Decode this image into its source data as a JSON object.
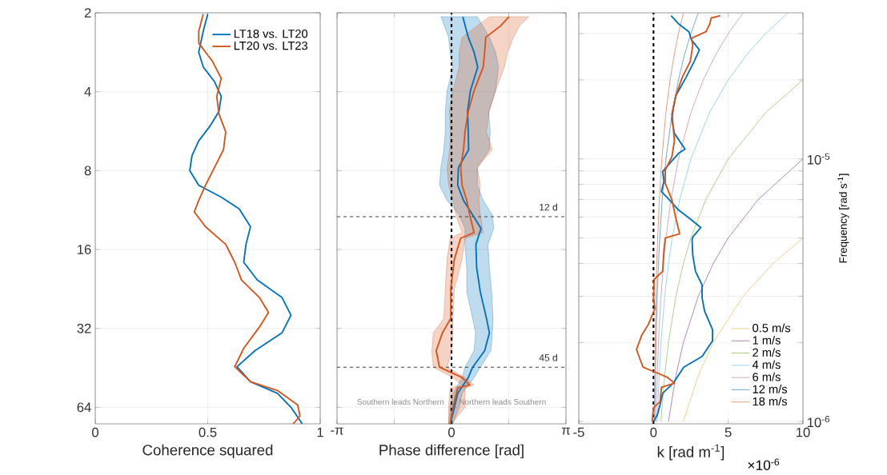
{
  "chart_data": [
    {
      "type": "line",
      "orientation": "horizontal",
      "xlabel": "Coherence squared",
      "log": "y",
      "grid": true,
      "legend": "top right",
      "xlim": [
        0,
        1
      ],
      "xticks": [
        0,
        0.5,
        1
      ],
      "ylim": [
        74,
        2
      ],
      "yticks": [
        2,
        4,
        8,
        16,
        32,
        64
      ],
      "series": [
        {
          "name": "LT18 vs. LT20",
          "color": "#0072bd",
          "x": [
            2.02,
            2.35,
            2.83,
            3.22,
            3.66,
            4.17,
            4.75,
            5.41,
            6.16,
            7.01,
            8.0,
            9.1,
            10.1,
            11.2,
            13.1,
            15.3,
            17.9,
            20.9,
            24.4,
            28.5,
            33.3,
            38.9,
            44.8,
            51.1,
            56.6,
            64,
            74
          ],
          "values": [
            0.5,
            0.48,
            0.46,
            0.48,
            0.53,
            0.56,
            0.55,
            0.51,
            0.46,
            0.43,
            0.42,
            0.46,
            0.56,
            0.64,
            0.69,
            0.67,
            0.66,
            0.72,
            0.83,
            0.87,
            0.83,
            0.71,
            0.63,
            0.69,
            0.81,
            0.87,
            0.92
          ]
        },
        {
          "name": "LT20 vs. LT23",
          "color": "#d95319",
          "x": [
            2.02,
            2.35,
            2.61,
            3.05,
            3.56,
            4.17,
            4.87,
            5.69,
            6.66,
            7.78,
            9.1,
            10.4,
            11.5,
            13.1,
            15.3,
            17.9,
            20.9,
            24.4,
            27.8,
            31.6,
            38.1,
            44.8,
            51.1,
            55.2,
            62.7,
            69.1,
            74
          ],
          "values": [
            0.48,
            0.46,
            0.46,
            0.52,
            0.56,
            0.54,
            0.55,
            0.58,
            0.57,
            0.53,
            0.49,
            0.46,
            0.44,
            0.49,
            0.58,
            0.62,
            0.65,
            0.73,
            0.77,
            0.73,
            0.66,
            0.62,
            0.69,
            0.81,
            0.9,
            0.91,
            0.88
          ]
        }
      ]
    },
    {
      "type": "line",
      "orientation": "horizontal",
      "xlabel": "Phase difference [rad]",
      "log": "y",
      "grid": true,
      "tick_labels": "x",
      "xlim": [
        -3.1416,
        3.1416
      ],
      "xticks": [
        {
          "value": -3.1416,
          "label": "-π"
        },
        {
          "value": -1.5708,
          "label": null
        },
        0,
        {
          "value": 1.5708,
          "label": null
        },
        {
          "value": 3.1416,
          "label": "π"
        }
      ],
      "ylim": [
        74,
        2
      ],
      "yticks": [
        2,
        4,
        8,
        16,
        32,
        64
      ],
      "ref_lines": [
        {
          "axis": "x",
          "value": 0,
          "color": "#000000",
          "line_style": "dashed"
        },
        {
          "axis": "y",
          "value": 12,
          "label": "12 d",
          "color": "#404040",
          "line_style": "dashed"
        },
        {
          "axis": "y",
          "value": 45,
          "label": "45 d",
          "color": "#404040",
          "line_style": "dashed"
        }
      ],
      "annotations": [
        "Southern leads Northern",
        "Northern leads Southern"
      ],
      "series": [
        {
          "color": "#0072bd",
          "x": [
            2.07,
            2.48,
            2.83,
            3.22,
            3.96,
            4.75,
            5.69,
            6.66,
            7.78,
            9.1,
            10.4,
            11.8,
            13.3,
            15.3,
            18.8,
            23.2,
            29.3,
            33.3,
            38.9,
            45.0,
            49.3,
            56.6,
            64,
            74
          ],
          "values": [
            0.31,
            0.46,
            0.62,
            0.72,
            0.52,
            0.44,
            0.46,
            0.47,
            0.19,
            0.17,
            0.33,
            0.58,
            0.81,
            0.67,
            0.69,
            0.79,
            0.96,
            1.04,
            0.91,
            0.58,
            0.46,
            0.17,
            0.08,
            -0.03
          ],
          "lower": [
            -0.29,
            -0.08,
            -0.04,
            0.04,
            -0.12,
            -0.17,
            -0.17,
            -0.21,
            -0.29,
            -0.33,
            -0.12,
            0.21,
            0.37,
            0.37,
            0.42,
            0.42,
            0.58,
            0.66,
            0.62,
            0.37,
            0.29,
            0.04,
            -0.04,
            -0.08
          ],
          "upper": [
            0.71,
            1.04,
            1.21,
            1.29,
            1.21,
            1.02,
            1.06,
            1.04,
            0.71,
            0.71,
            0.87,
            1.12,
            1.16,
            1.0,
            1.04,
            1.1,
            1.14,
            1.12,
            1.08,
            0.79,
            0.62,
            0.29,
            0.21,
            0.04
          ]
        },
        {
          "color": "#d95319",
          "x": [
            2.07,
            2.24,
            2.48,
            2.83,
            3.22,
            3.96,
            4.75,
            5.69,
            6.66,
            7.78,
            9.1,
            10.4,
            11.8,
            13.8,
            14.5,
            17.4,
            22.6,
            29.3,
            33.3,
            38.9,
            45.0,
            49.3,
            52.6,
            54.0,
            64,
            74
          ],
          "values": [
            1.58,
            1.35,
            0.94,
            0.91,
            0.87,
            0.62,
            0.46,
            0.37,
            0.33,
            0.25,
            0.29,
            0.42,
            0.5,
            0.62,
            0.25,
            0.08,
            -0.02,
            -0.02,
            -0.25,
            -0.42,
            -0.33,
            0.29,
            0.5,
            0.17,
            0.04,
            -0.04
          ],
          "lower": [
            1.04,
            0.71,
            0.29,
            0.21,
            0.21,
            0.04,
            -0.06,
            -0.03,
            -0.05,
            -0.12,
            -0.08,
            0.04,
            0.12,
            0.29,
            -0.04,
            -0.12,
            -0.17,
            -0.21,
            -0.5,
            -0.54,
            -0.5,
            0.04,
            0.29,
            -0.04,
            -0.08,
            -0.08
          ],
          "upper": [
            2.12,
            1.87,
            1.7,
            1.54,
            1.45,
            1.21,
            1.04,
            0.96,
            1.12,
            0.71,
            0.79,
            0.75,
            0.79,
            0.87,
            0.37,
            0.29,
            0.08,
            0.04,
            0.04,
            0.0,
            -0.12,
            0.37,
            0.62,
            0.37,
            0.37,
            0.0
          ]
        }
      ]
    },
    {
      "type": "line",
      "orientation": "horizontal",
      "xlabel": "k [rad m$^{-1}$]",
      "ylabel": "Frequency [rad s$^{-1}$]",
      "log": "y",
      "grid": true,
      "legend": "bottom right",
      "xlim": [
        -5,
        10
      ],
      "xticks": [
        -5,
        0,
        5,
        10
      ],
      "ylim": [
        9.8e-07,
        3.6e-05
      ],
      "yticks": [
        {
          "value": 1e-06,
          "label": "10$^{-6}$"
        },
        {
          "value": 2e-06,
          "label": null
        },
        {
          "value": 3e-06,
          "label": null
        },
        {
          "value": 4e-06,
          "label": null
        },
        {
          "value": 5e-06,
          "label": null
        },
        {
          "value": 6e-06,
          "label": null
        },
        {
          "value": 7e-06,
          "label": null
        },
        {
          "value": 8e-06,
          "label": null
        },
        {
          "value": 9e-06,
          "label": null
        },
        {
          "value": 1e-05,
          "label": "10$^{-5}$"
        },
        {
          "value": 2e-05,
          "label": null
        },
        {
          "value": 3e-05,
          "label": null
        }
      ],
      "ref_lines": [
        {
          "axis": "x",
          "value": 0,
          "color": "#000000",
          "line_style": "dashed"
        }
      ],
      "annotations": [
        "×10$^{-6}$"
      ],
      "series": [
        {
          "name": "0.5 m/s",
          "color": "#edc46e",
          "x": [
            1e-06,
            1.5e-06,
            2e-06,
            3e-06,
            4e-06,
            5e-06
          ],
          "values": [
            2,
            3,
            4,
            6,
            8,
            10
          ]
        },
        {
          "name": "1 m/s",
          "color": "#9a6aa8",
          "x": [
            1e-06,
            1.5e-06,
            2e-06,
            3e-06,
            4e-06,
            5e-06,
            7e-06,
            1e-05
          ],
          "values": [
            1,
            1.5,
            2,
            3,
            4,
            5,
            7,
            10
          ]
        },
        {
          "name": "2 m/s",
          "color": "#9cc46c",
          "x": [
            1e-06,
            1.5e-06,
            2e-06,
            3e-06,
            4e-06,
            5e-06,
            7e-06,
            1e-05,
            1.5e-05,
            2e-05
          ],
          "values": [
            0.5,
            0.75,
            1,
            1.5,
            2,
            2.5,
            3.5,
            5,
            7.5,
            10
          ]
        },
        {
          "name": "4 m/s",
          "color": "#7fcdee",
          "x": [
            1e-06,
            1.5e-06,
            2e-06,
            3e-06,
            4e-06,
            5e-06,
            7e-06,
            1e-05,
            1.5e-05,
            2e-05,
            2.5e-05,
            3e-05,
            3.6e-05
          ],
          "values": [
            0.25,
            0.38,
            0.5,
            0.75,
            1,
            1.25,
            1.75,
            2.5,
            3.75,
            5,
            6.25,
            7.5,
            9
          ]
        },
        {
          "name": "6 m/s",
          "color": "#cf93b4",
          "x": [
            1e-06,
            1.5e-06,
            2e-06,
            3e-06,
            4e-06,
            5e-06,
            7e-06,
            1e-05,
            1.5e-05,
            2e-05,
            2.5e-05,
            3e-05,
            3.6e-05
          ],
          "values": [
            0.17,
            0.25,
            0.33,
            0.5,
            0.67,
            0.83,
            1.17,
            1.67,
            2.5,
            3.33,
            4.17,
            5,
            6
          ]
        },
        {
          "name": "12 m/s",
          "color": "#4a94d0",
          "x": [
            1e-06,
            1.5e-06,
            2e-06,
            3e-06,
            4e-06,
            5e-06,
            7e-06,
            1e-05,
            1.5e-05,
            2e-05,
            2.5e-05,
            3e-05,
            3.6e-05
          ],
          "values": [
            0.08,
            0.13,
            0.17,
            0.25,
            0.33,
            0.42,
            0.58,
            0.83,
            1.25,
            1.67,
            2.08,
            2.5,
            3
          ]
        },
        {
          "name": "18 m/s",
          "color": "#e5825a",
          "x": [
            1e-06,
            1.5e-06,
            2e-06,
            3e-06,
            4e-06,
            5e-06,
            7e-06,
            1e-05,
            1.5e-05,
            2e-05,
            2.5e-05,
            3e-05,
            3.6e-05
          ],
          "values": [
            0.06,
            0.08,
            0.11,
            0.17,
            0.22,
            0.28,
            0.39,
            0.56,
            0.83,
            1.11,
            1.39,
            1.67,
            2
          ]
        },
        {
          "color": "#0072bd",
          "x": [
            3.51e-05,
            3.27e-05,
            3.05e-05,
            2.84e-05,
            2.6e-05,
            2.35e-05,
            2.05e-05,
            1.74e-05,
            1.55e-05,
            1.41e-05,
            1.25e-05,
            1.09e-05,
            1.05e-05,
            9.7e-06,
            8.95e-06,
            8.23e-06,
            7.51e-06,
            7e-06,
            6.39e-06,
            5.96e-06,
            5.48e-06,
            5.04e-06,
            4.93e-06,
            4.29e-06,
            3.73e-06,
            3.31e-06,
            2.96e-06,
            2.63e-06,
            2.24e-06,
            2.03e-06,
            1.77e-06,
            1.61e-06,
            1.5e-06,
            1.4e-06,
            1.28e-06,
            1.16e-06,
            1.06e-06,
            1e-06
          ],
          "values": [
            1.18,
            1.67,
            2.37,
            2.54,
            3.07,
            2.72,
            2.19,
            1.49,
            1.32,
            1.23,
            1.4,
            2.11,
            1.67,
            1.14,
            0.61,
            0.7,
            0.53,
            1.05,
            1.67,
            2.37,
            3.16,
            2.63,
            2.58,
            2.63,
            2.81,
            3.25,
            3.25,
            3.42,
            3.95,
            3.95,
            3.25,
            2.02,
            1.67,
            1.32,
            0.61,
            0.44,
            0.26,
            0.0
          ]
        },
        {
          "color": "#d95319",
          "x": [
            3.51e-05,
            3.44e-05,
            3.27e-05,
            3.05e-05,
            2.88e-05,
            2.71e-05,
            2.35e-05,
            2.05e-05,
            1.74e-05,
            1.48e-05,
            1.32e-05,
            1.17e-05,
            1.02e-05,
            9.08e-06,
            8.05e-06,
            7e-06,
            5.96e-06,
            5.19e-06,
            5e-06,
            4.51e-06,
            3.73e-06,
            3.48e-06,
            2.96e-06,
            2.69e-06,
            2.34e-06,
            2.13e-06,
            1.88e-06,
            1.61e-06,
            1.53e-06,
            1.47e-06,
            1.4e-06,
            1.35e-06,
            1.19e-06,
            1.13e-06,
            1e-06
          ],
          "values": [
            4.47,
            3.86,
            3.77,
            3.51,
            2.54,
            2.63,
            2.46,
            1.93,
            1.49,
            1.23,
            1.32,
            1.4,
            1.23,
            0.79,
            0.79,
            1.23,
            1.49,
            1.75,
            0.79,
            0.7,
            0.61,
            0.05,
            0.0,
            0.09,
            -0.35,
            -0.79,
            -1.14,
            -0.7,
            0.26,
            0.96,
            1.4,
            0.53,
            0.44,
            0.0,
            -0.09
          ]
        }
      ]
    }
  ]
}
